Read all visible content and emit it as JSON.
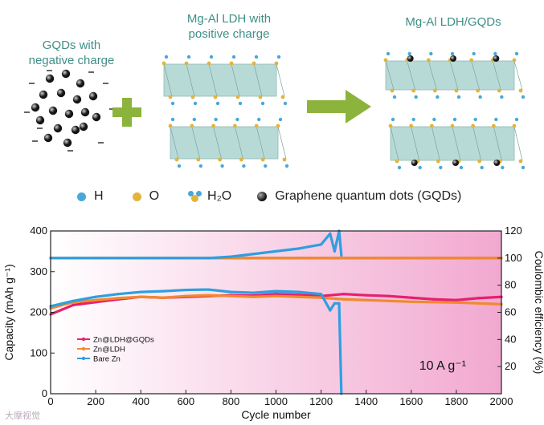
{
  "schematic": {
    "gqds_label": "GQDs with\nnegative charge",
    "ldh_label": "Mg-Al LDH with\npositive charge",
    "product_label": "Mg-Al LDH/GQDs",
    "legend": [
      {
        "name": "H",
        "color": "#4aa8d6"
      },
      {
        "name": "O",
        "color": "#e3b43d"
      },
      {
        "name": "H₂O",
        "color": "#e3b43d"
      },
      {
        "name": "Graphene quantum dots (GQDs)",
        "color": "#222222"
      }
    ],
    "colors": {
      "accent_text": "#3e8f86",
      "plus_arrow": "#8cb43c",
      "slab": "#b8dad6"
    }
  },
  "chart_data": {
    "type": "line",
    "xlabel": "Cycle number",
    "ylabel": "Capacity (mAh g⁻¹)",
    "y2label": "Coulombic efficiency (%)",
    "xlim": [
      0,
      2000
    ],
    "ylim": [
      0,
      400
    ],
    "y2lim": [
      0,
      120
    ],
    "xticks": [
      0,
      200,
      400,
      600,
      800,
      1000,
      1200,
      1400,
      1600,
      1800,
      2000
    ],
    "yticks": [
      0,
      100,
      200,
      300,
      400
    ],
    "y2ticks": [
      20,
      40,
      60,
      80,
      100,
      120
    ],
    "annotation": "10 A g⁻¹",
    "background": {
      "from": "#ffffff",
      "to": "#f2a8d0"
    },
    "series": [
      {
        "name": "Zn@LDH@GQDs",
        "color": "#e5206e",
        "x": [
          0,
          100,
          200,
          300,
          400,
          500,
          600,
          700,
          800,
          900,
          1000,
          1100,
          1200,
          1300,
          1400,
          1500,
          1600,
          1700,
          1800,
          1900,
          2000
        ],
        "capacity": [
          195,
          218,
          225,
          232,
          238,
          236,
          238,
          240,
          242,
          241,
          245,
          243,
          240,
          245,
          242,
          240,
          236,
          232,
          230,
          235,
          238
        ],
        "ce": [
          100,
          100,
          100,
          100,
          100,
          100,
          100,
          100,
          100,
          100,
          100,
          100,
          100,
          100,
          100,
          100,
          100,
          100,
          100,
          100,
          100
        ]
      },
      {
        "name": "Zn@LDH",
        "color": "#f08a2e",
        "x": [
          0,
          100,
          200,
          300,
          400,
          500,
          600,
          700,
          800,
          900,
          1000,
          1100,
          1200,
          1300,
          1400,
          1500,
          1600,
          1700,
          1800,
          1900,
          2000
        ],
        "capacity": [
          210,
          225,
          230,
          235,
          238,
          236,
          240,
          242,
          240,
          238,
          240,
          238,
          236,
          232,
          230,
          228,
          226,
          225,
          224,
          222,
          220
        ],
        "ce": [
          100,
          100,
          100,
          100,
          100,
          100,
          100,
          100,
          100,
          100,
          100,
          100,
          100,
          100,
          100,
          100,
          100,
          100,
          100,
          100,
          100
        ]
      },
      {
        "name": "Bare Zn",
        "color": "#2e9fe0",
        "x": [
          0,
          100,
          200,
          300,
          400,
          500,
          600,
          700,
          800,
          900,
          1000,
          1100,
          1200,
          1240,
          1260,
          1280,
          1290
        ],
        "capacity": [
          215,
          228,
          238,
          245,
          250,
          252,
          255,
          256,
          250,
          248,
          252,
          250,
          245,
          205,
          222,
          222,
          0
        ],
        "ce": [
          100,
          100,
          100,
          100,
          100,
          100,
          100,
          100,
          101,
          103,
          105,
          107,
          110,
          118,
          105,
          120,
          102
        ]
      }
    ]
  },
  "watermark": "大摩视觉"
}
